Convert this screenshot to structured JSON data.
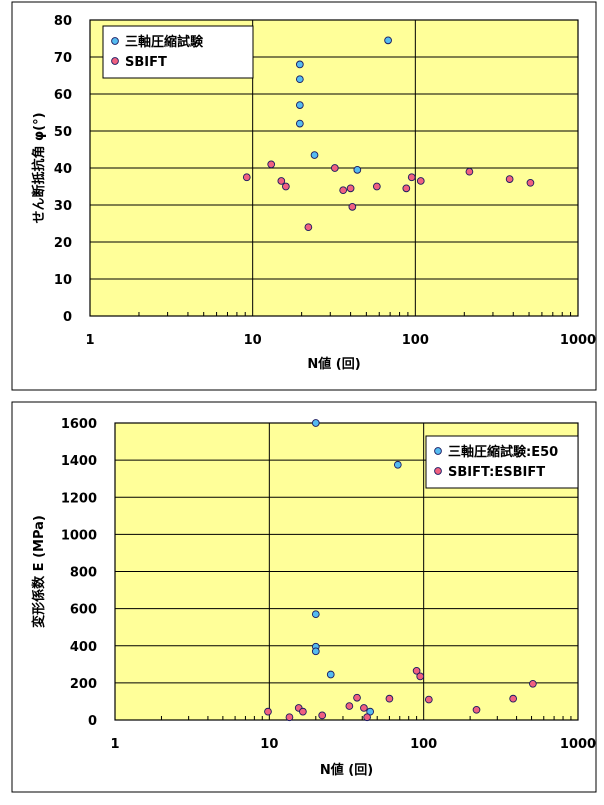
{
  "chart_data": [
    {
      "type": "scatter",
      "title": "",
      "xlabel": "N値 (回)",
      "ylabel": "せん断抵抗角 φ(°)",
      "xscale": "log",
      "xlim": [
        1,
        1000
      ],
      "ylim": [
        0,
        80
      ],
      "x_ticks": [
        1,
        10,
        100,
        1000
      ],
      "x_tick_labels": [
        "1",
        "10",
        "100",
        "1000"
      ],
      "y_ticks": [
        0,
        10,
        20,
        30,
        40,
        50,
        60,
        70,
        80
      ],
      "y_tick_labels": [
        "0",
        "10",
        "20",
        "30",
        "40",
        "50",
        "60",
        "70",
        "80"
      ],
      "grid": true,
      "background_color": "#ffff99",
      "legend_position": "top-left",
      "series": [
        {
          "name": "三軸圧縮試験",
          "color": "#55bbf0",
          "points": [
            {
              "x": 19.5,
              "y": 68
            },
            {
              "x": 19.5,
              "y": 64
            },
            {
              "x": 19.5,
              "y": 57
            },
            {
              "x": 19.5,
              "y": 52
            },
            {
              "x": 24,
              "y": 43.5
            },
            {
              "x": 44,
              "y": 39.5
            },
            {
              "x": 68,
              "y": 74.5
            }
          ]
        },
        {
          "name": "SBIFT",
          "color": "#f06080",
          "points": [
            {
              "x": 9.2,
              "y": 37.5
            },
            {
              "x": 13,
              "y": 41
            },
            {
              "x": 15,
              "y": 36.5
            },
            {
              "x": 16,
              "y": 35
            },
            {
              "x": 22,
              "y": 24
            },
            {
              "x": 32,
              "y": 40
            },
            {
              "x": 36,
              "y": 34
            },
            {
              "x": 40,
              "y": 34.5
            },
            {
              "x": 41,
              "y": 29.5
            },
            {
              "x": 58,
              "y": 35
            },
            {
              "x": 88,
              "y": 34.5
            },
            {
              "x": 95,
              "y": 37.5
            },
            {
              "x": 108,
              "y": 36.5
            },
            {
              "x": 215,
              "y": 39
            },
            {
              "x": 380,
              "y": 37
            },
            {
              "x": 510,
              "y": 36
            }
          ]
        }
      ]
    },
    {
      "type": "scatter",
      "title": "",
      "xlabel": "N値 (回)",
      "ylabel": "変形係数 E (MPa)",
      "xscale": "log",
      "xlim": [
        1,
        1000
      ],
      "ylim": [
        0,
        1600
      ],
      "x_ticks": [
        1,
        10,
        100,
        1000
      ],
      "x_tick_labels": [
        "1",
        "10",
        "100",
        "1000"
      ],
      "y_ticks": [
        0,
        200,
        400,
        600,
        800,
        1000,
        1200,
        1400,
        1600
      ],
      "y_tick_labels": [
        "0",
        "200",
        "400",
        "600",
        "800",
        "1000",
        "1200",
        "1400",
        "1600"
      ],
      "grid": true,
      "background_color": "#ffff99",
      "legend_position": "top-right",
      "series": [
        {
          "name": "三軸圧縮試験:E50",
          "color": "#55bbf0",
          "points": [
            {
              "x": 20,
              "y": 1600
            },
            {
              "x": 68,
              "y": 1375
            },
            {
              "x": 20,
              "y": 570
            },
            {
              "x": 20,
              "y": 395
            },
            {
              "x": 20,
              "y": 370
            },
            {
              "x": 25,
              "y": 245
            },
            {
              "x": 45,
              "y": 45
            }
          ]
        },
        {
          "name": "SBIFT:ESBIFT",
          "color": "#f06080",
          "points": [
            {
              "x": 9.8,
              "y": 45
            },
            {
              "x": 13.5,
              "y": 15
            },
            {
              "x": 15.5,
              "y": 65
            },
            {
              "x": 16.5,
              "y": 45
            },
            {
              "x": 22,
              "y": 25
            },
            {
              "x": 33,
              "y": 75
            },
            {
              "x": 37,
              "y": 120
            },
            {
              "x": 41,
              "y": 65
            },
            {
              "x": 43,
              "y": 15
            },
            {
              "x": 60,
              "y": 115
            },
            {
              "x": 90,
              "y": 265
            },
            {
              "x": 95,
              "y": 235
            },
            {
              "x": 108,
              "y": 110
            },
            {
              "x": 220,
              "y": 55
            },
            {
              "x": 380,
              "y": 115
            },
            {
              "x": 510,
              "y": 195
            }
          ]
        }
      ]
    }
  ]
}
